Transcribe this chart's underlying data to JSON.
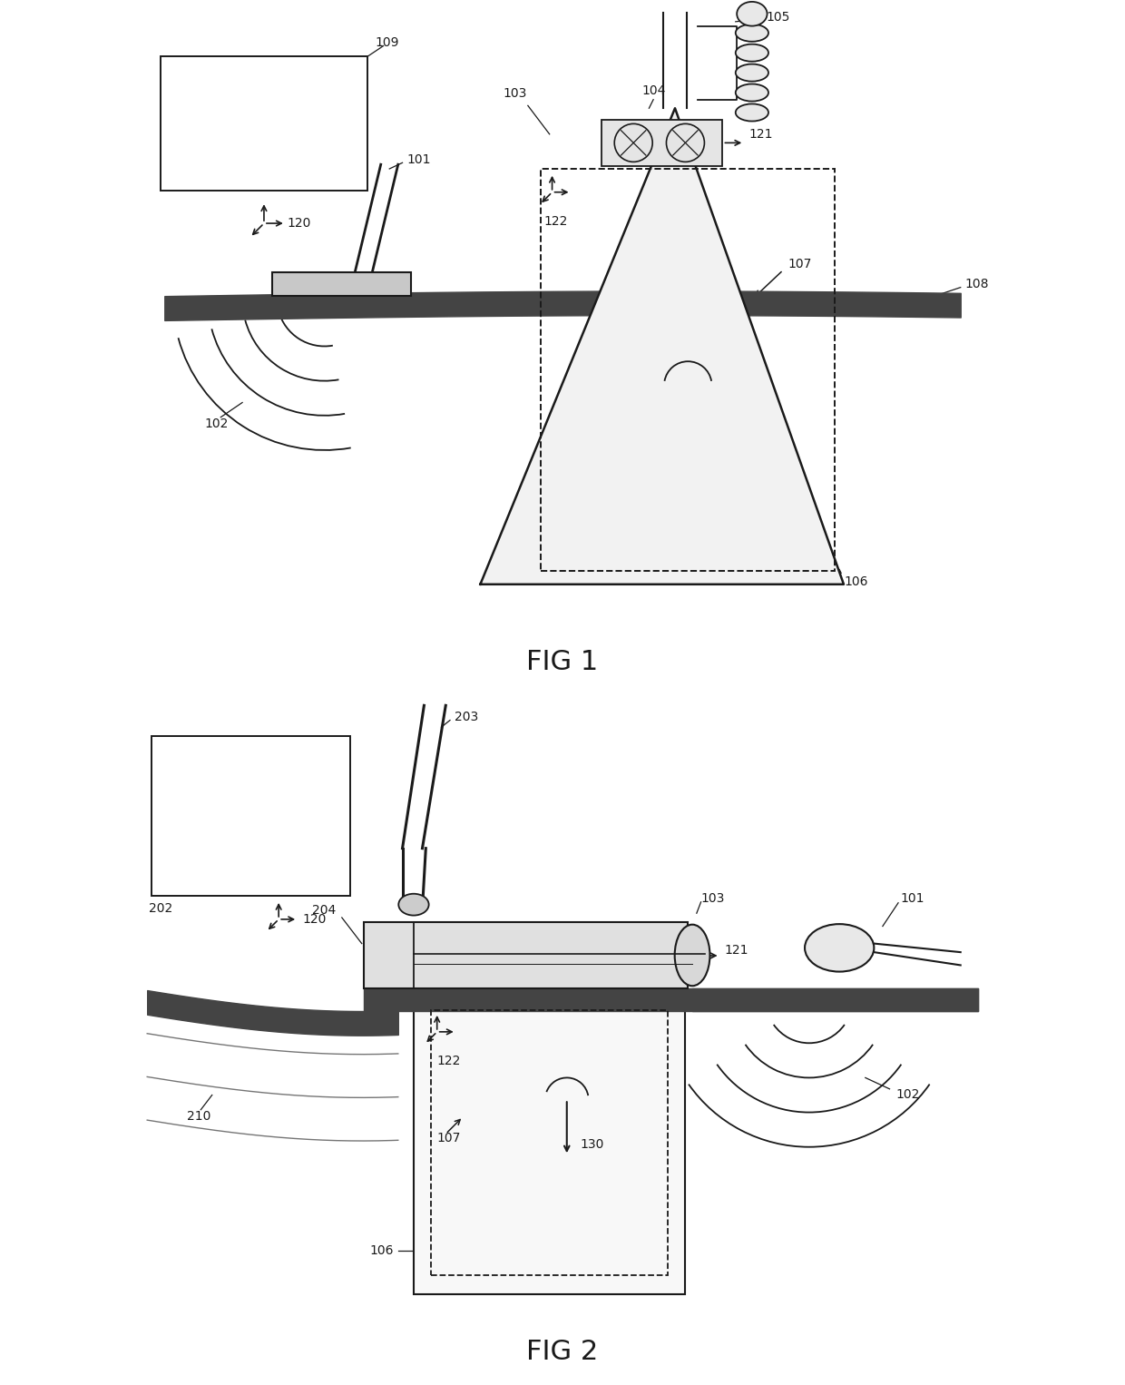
{
  "fig_width": 12.4,
  "fig_height": 15.26,
  "bg_color": "#ffffff",
  "line_color": "#1a1a1a",
  "text_color": "#1a1a1a",
  "label_fontsize": 10,
  "title_fontsize": 22,
  "fig1_title": "FIG 1",
  "fig2_title": "FIG 2"
}
